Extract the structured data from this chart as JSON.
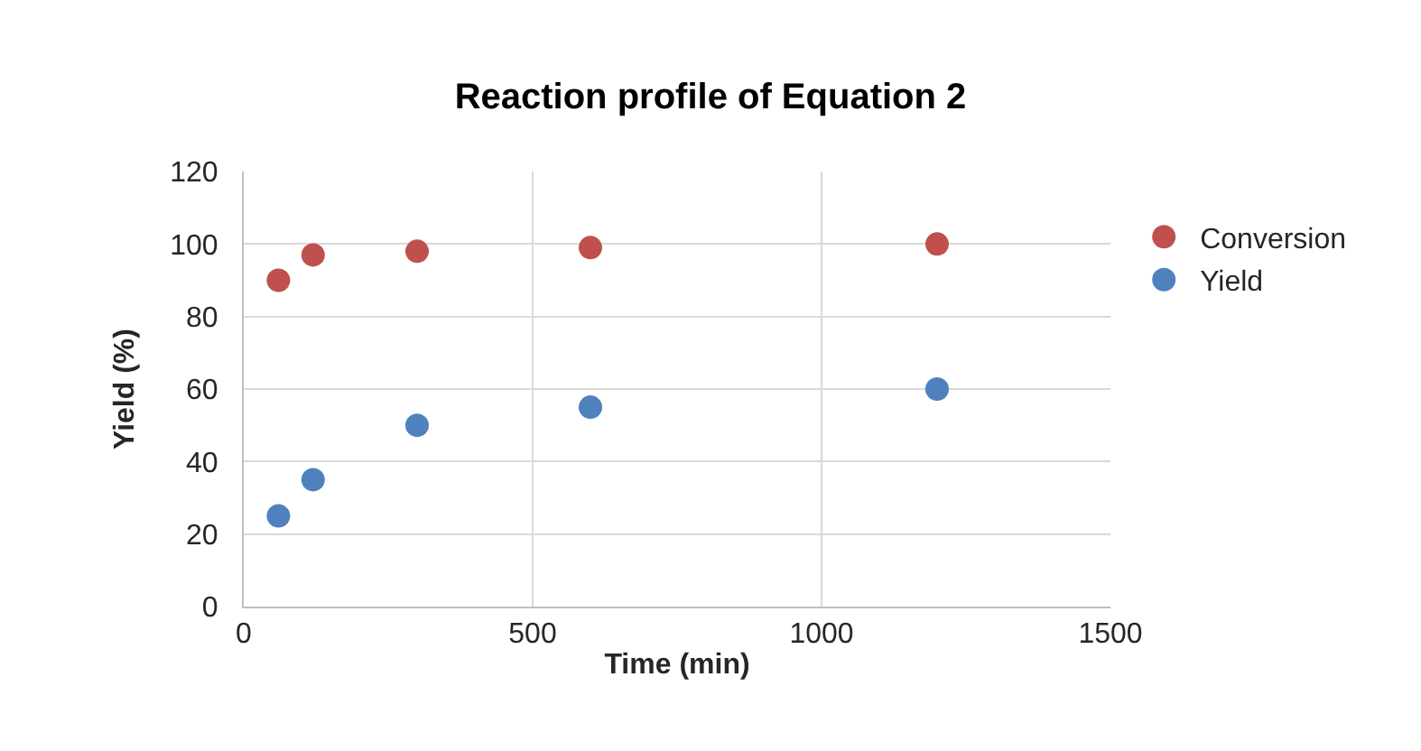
{
  "chart_data": {
    "type": "scatter",
    "title": "Reaction profile of Equation 2",
    "xlabel": "Time (min)",
    "ylabel": "Yield (%)",
    "series": [
      {
        "name": "Conversion",
        "color": "#c0504d",
        "x": [
          60,
          120,
          300,
          600,
          1200
        ],
        "values": [
          90,
          97,
          98,
          99,
          100
        ]
      },
      {
        "name": "Yield",
        "color": "#4f81bd",
        "x": [
          60,
          120,
          300,
          600,
          1200
        ],
        "values": [
          25,
          35,
          50,
          55,
          60
        ]
      }
    ],
    "xlim": [
      0,
      1500
    ],
    "xticks": [
      0,
      500,
      1000,
      1500
    ],
    "ylim": [
      0,
      120
    ],
    "yticks": [
      0,
      20,
      40,
      60,
      80,
      100,
      120
    ],
    "grid": true,
    "legend": "right",
    "marker": "circle"
  }
}
